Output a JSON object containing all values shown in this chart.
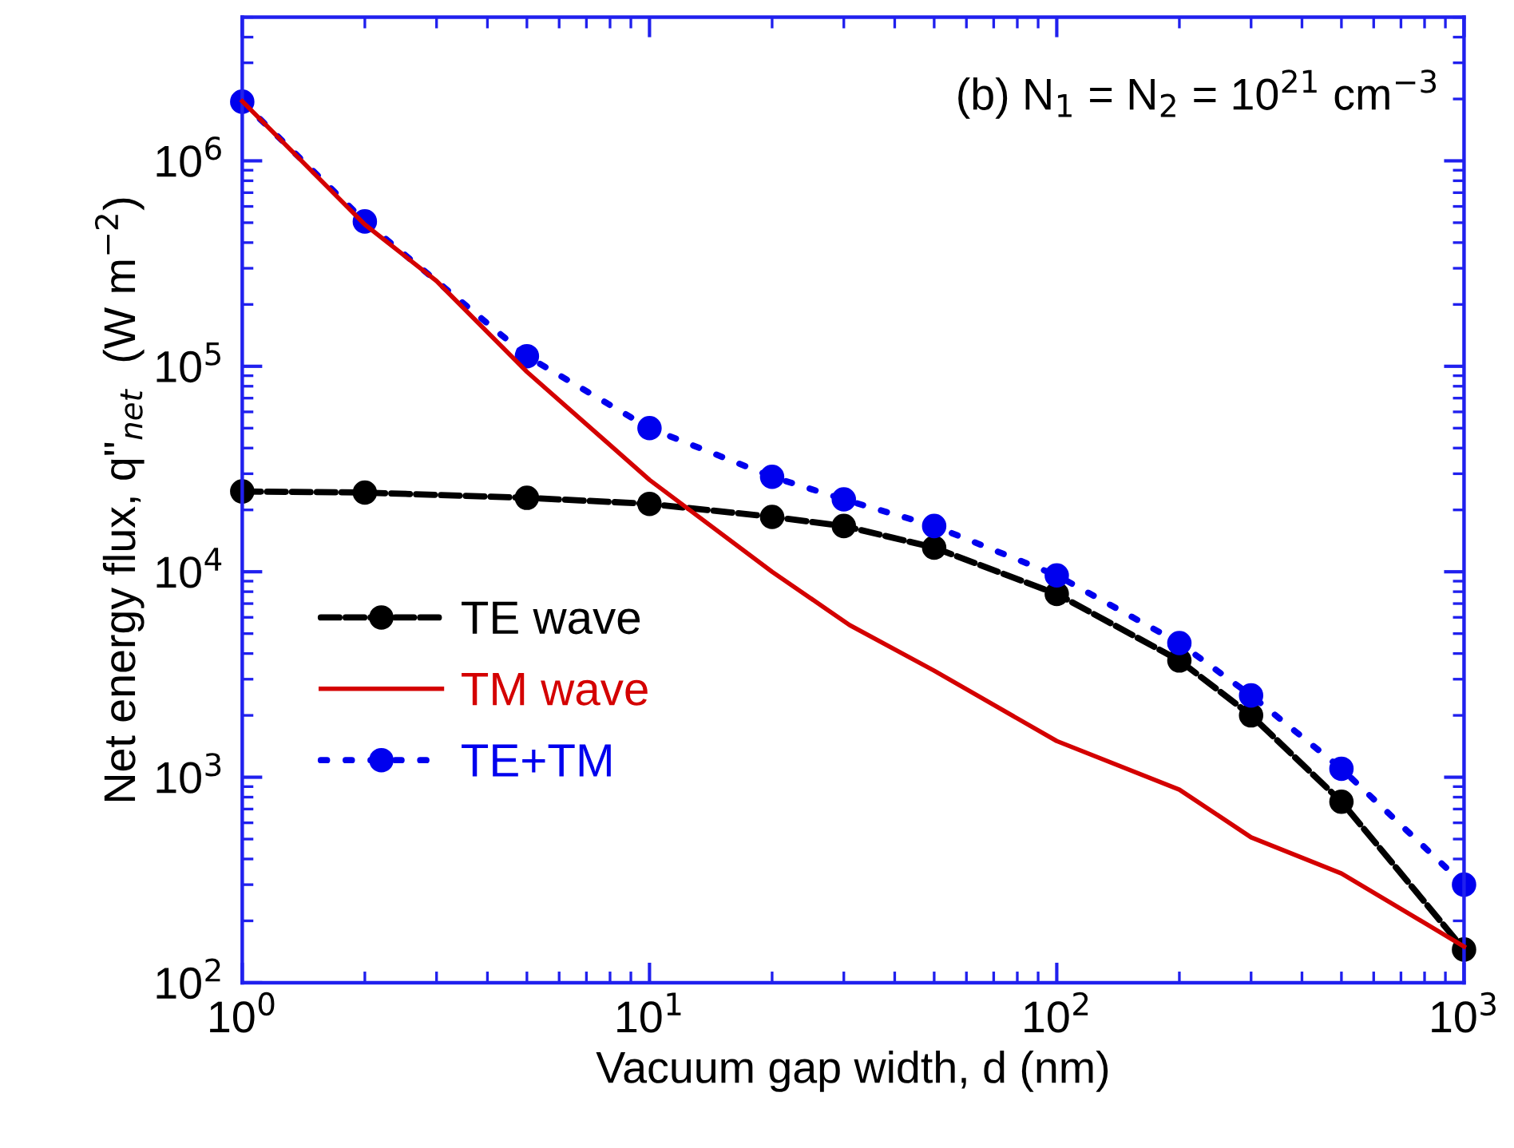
{
  "chart_data": {
    "type": "line",
    "xlabel": "Vacuum gap width, d (nm)",
    "ylabel": "Net energy flux, q\"$_{net}$  (W m$^{−2}$)",
    "annotations": [
      "(b) N$_{1}$ = N$_{2}$ = 10$^{21}$ cm$^{−3}$"
    ],
    "log": "xy",
    "xlim": [
      1,
      1000
    ],
    "ylim": [
      100,
      5000000
    ],
    "xticks": [
      {
        "value": 1,
        "label": "10$^{0}$"
      },
      {
        "value": 10,
        "label": "10$^{1}$"
      },
      {
        "value": 100,
        "label": "10$^{2}$"
      },
      {
        "value": 1000,
        "label": "10$^{3}$"
      }
    ],
    "yticks": [
      {
        "value": 100,
        "label": "10$^{2}$"
      },
      {
        "value": 1000,
        "label": "10$^{3}$"
      },
      {
        "value": 10000,
        "label": "10$^{4}$"
      },
      {
        "value": 100000,
        "label": "10$^{5}$"
      },
      {
        "value": 1000000,
        "label": "10$^{6}$"
      }
    ],
    "grid": false,
    "legend": "left",
    "series": [
      {
        "name": "TE wave",
        "color": "#000000",
        "marker": "circle",
        "line_style": "dashed",
        "x": [
          1,
          2,
          5,
          10,
          20,
          30,
          50,
          100,
          200,
          300,
          500,
          1000
        ],
        "values": [
          24600,
          24300,
          22900,
          21400,
          18500,
          16700,
          13100,
          7800,
          3700,
          2000,
          760,
          145
        ]
      },
      {
        "name": "TM wave",
        "color": "#d40000",
        "marker": "none",
        "line_style": "solid",
        "x": [
          1,
          2,
          3,
          5,
          10,
          20,
          31,
          50,
          100,
          200,
          300,
          500,
          1000
        ],
        "values": [
          1950000,
          490000,
          260000,
          94000,
          28000,
          10000,
          5500,
          3300,
          1500,
          870,
          510,
          340,
          150
        ]
      },
      {
        "name": "TE+TM",
        "color": "#0000ee",
        "marker": "circle",
        "line_style": "dotted",
        "x": [
          1,
          2,
          5,
          10,
          20,
          30,
          50,
          100,
          200,
          300,
          500,
          1000
        ],
        "values": [
          1940000,
          507000,
          112000,
          50000,
          29000,
          22500,
          16700,
          9600,
          4500,
          2500,
          1100,
          300
        ]
      }
    ]
  }
}
